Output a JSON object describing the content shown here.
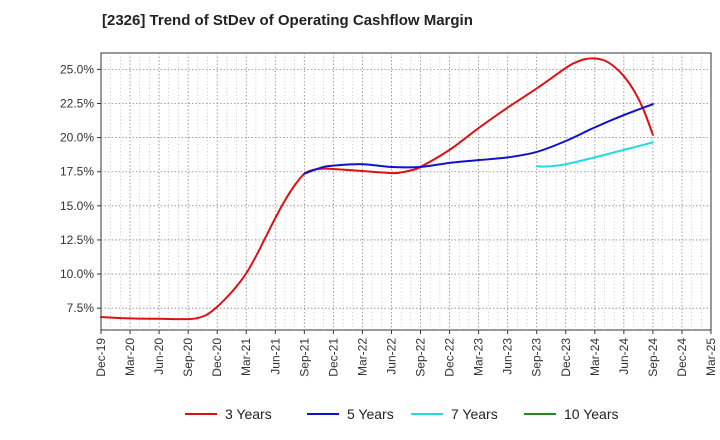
{
  "chart_data": {
    "type": "line",
    "title": "[2326]  Trend of StDev of Operating Cashflow Margin",
    "xlabel": "",
    "ylabel": "",
    "x_ticks": [
      "Dec-19",
      "Mar-20",
      "Jun-20",
      "Sep-20",
      "Dec-20",
      "Mar-21",
      "Jun-21",
      "Sep-21",
      "Dec-21",
      "Mar-22",
      "Jun-22",
      "Sep-22",
      "Dec-22",
      "Mar-23",
      "Jun-23",
      "Sep-23",
      "Dec-23",
      "Mar-24",
      "Jun-24",
      "Sep-24",
      "Dec-24",
      "Mar-25"
    ],
    "y_ticks": [
      "7.5%",
      "10.0%",
      "12.5%",
      "15.0%",
      "17.5%",
      "20.0%",
      "22.5%",
      "25.0%"
    ],
    "y_tick_values": [
      7.5,
      10.0,
      12.5,
      15.0,
      17.5,
      20.0,
      22.5,
      25.0
    ],
    "ylim": [
      5.9,
      26.2
    ],
    "grid": true,
    "legend_position": "bottom",
    "series": [
      {
        "name": "3 Years",
        "color": "#dd1111",
        "x": [
          "Dec-19",
          "Mar-20",
          "Jun-20",
          "Sep-20",
          "Oct-20",
          "Nov-20",
          "Dec-20",
          "Jan-21",
          "Feb-21",
          "Mar-21",
          "Apr-21",
          "May-21",
          "Jun-21",
          "Jul-21",
          "Aug-21",
          "Sep-21",
          "Oct-21",
          "Nov-21",
          "Dec-21",
          "Mar-22",
          "Jun-22",
          "Jul-22",
          "Aug-22",
          "Sep-22",
          "Dec-22",
          "Mar-23",
          "Jun-23",
          "Sep-23",
          "Dec-23",
          "Jan-24",
          "Feb-24",
          "Mar-24",
          "Apr-24",
          "May-24",
          "Jun-24",
          "Jul-24",
          "Aug-24",
          "Sep-24"
        ],
        "values": [
          6.85,
          6.75,
          6.72,
          6.7,
          6.78,
          7.05,
          7.6,
          8.3,
          9.1,
          10.05,
          11.3,
          12.7,
          14.1,
          15.4,
          16.5,
          17.35,
          17.65,
          17.72,
          17.7,
          17.55,
          17.4,
          17.45,
          17.6,
          17.85,
          19.1,
          20.7,
          22.2,
          23.6,
          25.1,
          25.5,
          25.75,
          25.8,
          25.65,
          25.2,
          24.5,
          23.5,
          22.1,
          20.2
        ]
      },
      {
        "name": "5 Years",
        "color": "#1111cc",
        "x": [
          "Sep-21",
          "Oct-21",
          "Nov-21",
          "Dec-21",
          "Mar-22",
          "Jun-22",
          "Sep-22",
          "Dec-22",
          "Mar-23",
          "Jun-23",
          "Sep-23",
          "Dec-23",
          "Mar-24",
          "Jun-24",
          "Sep-24"
        ],
        "values": [
          17.35,
          17.62,
          17.85,
          17.95,
          18.05,
          17.85,
          17.85,
          18.15,
          18.35,
          18.55,
          18.95,
          19.75,
          20.75,
          21.65,
          22.45
        ]
      },
      {
        "name": "7 Years",
        "color": "#22dddd",
        "x": [
          "Sep-23",
          "Oct-23",
          "Dec-23",
          "Mar-24",
          "Jun-24",
          "Sep-24"
        ],
        "values": [
          17.9,
          17.88,
          18.05,
          18.55,
          19.1,
          19.65
        ]
      },
      {
        "name": "10 Years",
        "color": "#228822",
        "x": [],
        "values": []
      }
    ]
  }
}
